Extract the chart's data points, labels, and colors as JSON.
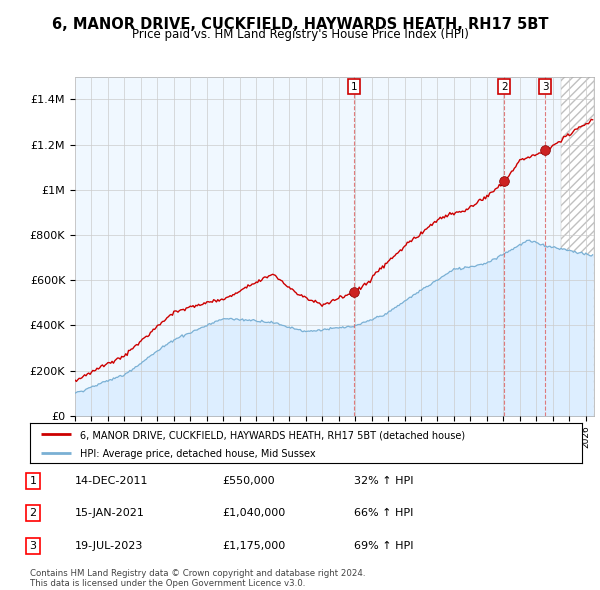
{
  "title": "6, MANOR DRIVE, CUCKFIELD, HAYWARDS HEATH, RH17 5BT",
  "subtitle": "Price paid vs. HM Land Registry's House Price Index (HPI)",
  "ylabel_ticks": [
    "£0",
    "£200K",
    "£400K",
    "£600K",
    "£800K",
    "£1M",
    "£1.2M",
    "£1.4M"
  ],
  "ytick_values": [
    0,
    200000,
    400000,
    600000,
    800000,
    1000000,
    1200000,
    1400000
  ],
  "ylim": [
    0,
    1500000
  ],
  "xlim_start": 1995.0,
  "xlim_end": 2026.5,
  "sale_years_decimal": [
    2011.958,
    2021.042,
    2023.542
  ],
  "sale_prices": [
    550000,
    1040000,
    1175000
  ],
  "sale_labels": [
    "1",
    "2",
    "3"
  ],
  "sale_info": [
    {
      "label": "1",
      "date": "14-DEC-2011",
      "price": "£550,000",
      "pct": "32%",
      "arrow": "↑"
    },
    {
      "label": "2",
      "date": "15-JAN-2021",
      "price": "£1,040,000",
      "pct": "66%",
      "arrow": "↑"
    },
    {
      "label": "3",
      "date": "19-JUL-2023",
      "price": "£1,175,000",
      "pct": "69%",
      "arrow": "↑"
    }
  ],
  "legend_line1": "6, MANOR DRIVE, CUCKFIELD, HAYWARDS HEATH, RH17 5BT (detached house)",
  "legend_line2": "HPI: Average price, detached house, Mid Sussex",
  "footer": "Contains HM Land Registry data © Crown copyright and database right 2024.\nThis data is licensed under the Open Government Licence v3.0.",
  "sale_color": "#cc0000",
  "hpi_fill_color": "#ddeeff",
  "hpi_line_color": "#7ab0d4",
  "plot_bg_color": "#f0f8ff",
  "grid_color": "#cccccc",
  "vline_color": "#dd6666",
  "hatch_color": "#c0c0c0",
  "label_box_color": "#cc0000",
  "hatch_start": 2024.5
}
